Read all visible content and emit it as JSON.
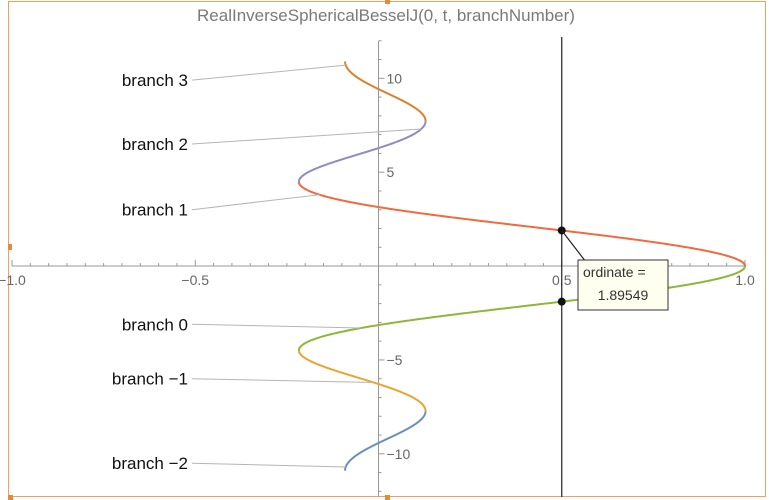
{
  "chart_data": {
    "type": "line",
    "title": "RealInverseSphericalBesselJ(0, t, branchNumber)",
    "xlim": [
      -1.0,
      1.0
    ],
    "ylim": [
      -12.3,
      12.2
    ],
    "x_ticks": [
      {
        "value": -1.0,
        "label": "−1.0"
      },
      {
        "value": -0.5,
        "label": "−0.5"
      },
      {
        "value": 0.5,
        "label": "0.5"
      },
      {
        "value": 1.0,
        "label": "1.0"
      }
    ],
    "y_ticks": [
      {
        "value": -10,
        "label": "−10"
      },
      {
        "value": -5,
        "label": "−5"
      },
      {
        "value": 5,
        "label": "5"
      },
      {
        "value": 10,
        "label": "10"
      }
    ],
    "grid": false,
    "series": [
      {
        "name": "branch 3",
        "color": "#d9822b",
        "y_range": [
          7.7252,
          10.9
        ],
        "label_y": 9.9
      },
      {
        "name": "branch 2",
        "color": "#8e8bc6",
        "y_range": [
          4.4934,
          7.7252
        ],
        "label_y": 6.5
      },
      {
        "name": "branch 1",
        "color": "#ed6b3f",
        "y_range": [
          0.0,
          4.4934
        ],
        "label_y": 3.0
      },
      {
        "name": "branch 0",
        "color": "#8db73a",
        "y_range": [
          -4.4934,
          0.0
        ],
        "label_y": -3.1
      },
      {
        "name": "branch −1",
        "color": "#e8a531",
        "y_range": [
          -7.7252,
          -4.4934
        ],
        "label_y": -6.0
      },
      {
        "name": "branch −2",
        "color": "#6d8dbd",
        "y_range": [
          -10.9,
          -7.7252
        ],
        "label_y": -10.5
      }
    ],
    "annotation": {
      "vertical_line_x": 0.5,
      "points": [
        {
          "x": 0.5,
          "y": 1.89549
        },
        {
          "x": 0.5,
          "y": -1.89549
        }
      ],
      "tooltip_title": "ordinate =",
      "tooltip_value": "1.89549"
    }
  }
}
